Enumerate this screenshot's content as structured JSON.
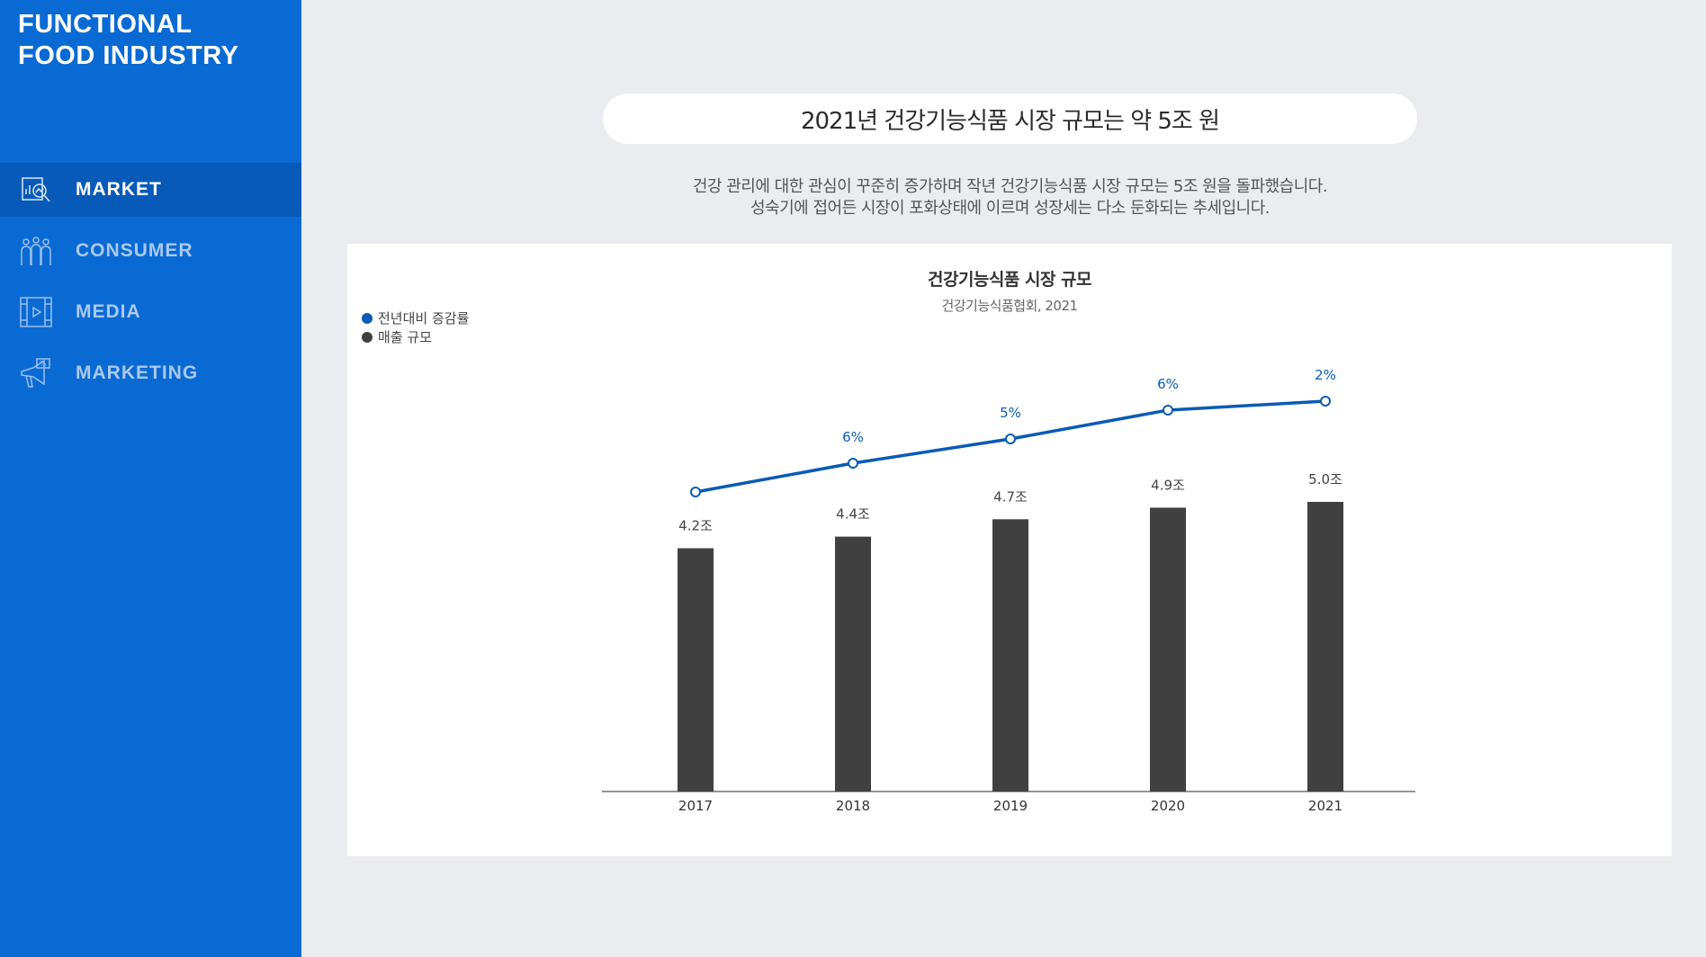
{
  "sidebar": {
    "brand_line1": "FUNCTIONAL",
    "brand_line2": "FOOD INDUSTRY",
    "items": [
      {
        "label": "MARKET",
        "icon": "market-analysis-icon",
        "active": true
      },
      {
        "label": "CONSUMER",
        "icon": "people-icon",
        "active": false
      },
      {
        "label": "MEDIA",
        "icon": "video-icon",
        "active": false
      },
      {
        "label": "MARKETING",
        "icon": "megaphone-icon",
        "active": false
      }
    ]
  },
  "main": {
    "headline": "2021년 건강기능식품 시장 규모는 약 5조 원",
    "description_line1": "건강 관리에 대한 관심이 꾸준히 증가하며 작년 건강기능식품 시장 규모는 5조 원을 돌파했습니다.",
    "description_line2": "성숙기에 접어든 시장이 포화상태에 이르며 성장세는 다소 둔화되는 추세입니다."
  },
  "colors": {
    "sidebar_bg": "#0a6ad4",
    "line": "#0a5bb5",
    "bar": "#404040"
  },
  "chart_data": {
    "type": "bar",
    "title": "건강기능식품 시장 규모",
    "subtitle": "건강기능식품협회, 2021",
    "categories": [
      "2017",
      "2018",
      "2019",
      "2020",
      "2021"
    ],
    "legend": [
      {
        "name": "전년대비 증감률",
        "color": "#0a5bb5"
      },
      {
        "name": "매출 규모",
        "color": "#404040"
      }
    ],
    "legend_position": "top-left",
    "grid": false,
    "series": [
      {
        "name": "매출 규모",
        "type": "bar",
        "values": [
          4.2,
          4.4,
          4.7,
          4.9,
          5.0
        ],
        "labels": [
          "4.2조",
          "4.4조",
          "4.7조",
          "4.9조",
          "5.0조"
        ]
      },
      {
        "name": "전년대비 증감률",
        "type": "line",
        "values": [
          null,
          6,
          5,
          6,
          2
        ],
        "labels": [
          "",
          "6%",
          "5%",
          "6%",
          "2%"
        ]
      }
    ]
  }
}
